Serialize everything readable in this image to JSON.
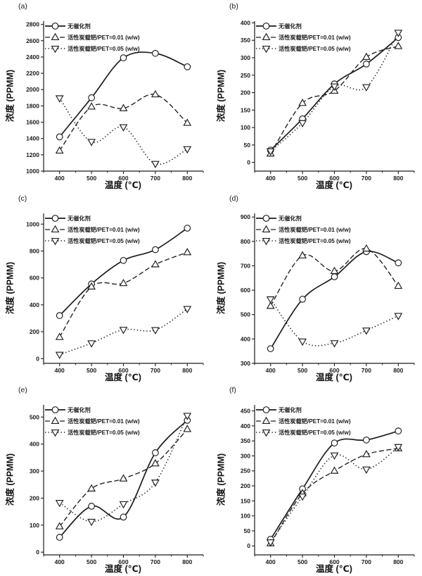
{
  "figure": {
    "background": "#ffffff",
    "line_color": "#1c1c1c",
    "text_color": "#1a1a1a"
  },
  "chart_data": [
    {
      "panel_label": "(a)",
      "type": "line",
      "xlabel": "温度 (℃)",
      "ylabel": "浓度 (PPMM)",
      "x": [
        400,
        500,
        600,
        700,
        800
      ],
      "xlim": [
        350,
        850
      ],
      "xticks": [
        400,
        500,
        600,
        700,
        800
      ],
      "xticks_minor": [
        350,
        450,
        550,
        650,
        750,
        850
      ],
      "ylim": [
        1000,
        2840
      ],
      "yticks": [
        1000,
        1200,
        1400,
        1600,
        1800,
        2000,
        2200,
        2400,
        2600,
        2800
      ],
      "grid": false,
      "legend_position": "top-left",
      "series": [
        {
          "name": "无催化剂",
          "marker": "circle",
          "line_style": "solid",
          "values": [
            1420,
            1900,
            2390,
            2445,
            2280
          ]
        },
        {
          "name": "活性炭载钯/PET=0.01 (w/w)",
          "marker": "triangle-up",
          "line_style": "dashed",
          "values": [
            1250,
            1790,
            1770,
            1940,
            1590
          ]
        },
        {
          "name": "活性炭载钯/PET=0.05 (w/w)",
          "marker": "triangle-down",
          "line_style": "dotted",
          "values": [
            1895,
            1360,
            1540,
            1090,
            1270
          ]
        }
      ]
    },
    {
      "panel_label": "(b)",
      "type": "line",
      "xlabel": "温度 (℃)",
      "ylabel": "浓度 (PPMM)",
      "x": [
        400,
        500,
        600,
        700,
        800
      ],
      "xlim": [
        350,
        850
      ],
      "xticks": [
        400,
        500,
        600,
        700,
        800
      ],
      "xticks_minor": [
        350,
        450,
        550,
        650,
        750,
        850
      ],
      "ylim": [
        -25,
        405
      ],
      "yticks": [
        0,
        50,
        100,
        150,
        200,
        250,
        300,
        350,
        400
      ],
      "grid": false,
      "legend_position": "top-left",
      "series": [
        {
          "name": "无催化剂",
          "marker": "circle",
          "line_style": "solid",
          "values": [
            35,
            125,
            225,
            282,
            358
          ]
        },
        {
          "name": "活性炭载钯/PET=0.01 (w/w)",
          "marker": "triangle-up",
          "line_style": "dashed",
          "values": [
            25,
            170,
            205,
            302,
            333
          ]
        },
        {
          "name": "活性炭载钯/PET=0.05 (w/w)",
          "marker": "triangle-down",
          "line_style": "dotted",
          "values": [
            32,
            113,
            218,
            216,
            372
          ]
        }
      ]
    },
    {
      "panel_label": "(c)",
      "type": "line",
      "xlabel": "温度 (℃)",
      "ylabel": "浓度 (PPMM)",
      "x": [
        400,
        500,
        600,
        700,
        800
      ],
      "xlim": [
        350,
        850
      ],
      "xticks": [
        400,
        500,
        600,
        700,
        800
      ],
      "xticks_minor": [
        350,
        450,
        550,
        650,
        750,
        850
      ],
      "ylim": [
        -35,
        1080
      ],
      "yticks": [
        0,
        200,
        400,
        600,
        800,
        1000
      ],
      "grid": false,
      "legend_position": "top-left",
      "series": [
        {
          "name": "无催化剂",
          "marker": "circle",
          "line_style": "solid",
          "values": [
            320,
            555,
            730,
            810,
            970
          ]
        },
        {
          "name": "活性炭载钯/PET=0.01 (w/w)",
          "marker": "triangle-up",
          "line_style": "dashed",
          "values": [
            160,
            535,
            560,
            700,
            790
          ]
        },
        {
          "name": "活性炭载钯/PET=0.05 (w/w)",
          "marker": "triangle-down",
          "line_style": "dotted",
          "values": [
            30,
            115,
            215,
            213,
            370
          ]
        }
      ]
    },
    {
      "panel_label": "(d)",
      "type": "line",
      "xlabel": "温度 (℃)",
      "ylabel": "浓度 (PPMM)",
      "x": [
        400,
        500,
        600,
        700,
        800
      ],
      "xlim": [
        350,
        850
      ],
      "xticks": [
        400,
        500,
        600,
        700,
        800
      ],
      "xticks_minor": [
        350,
        450,
        550,
        650,
        750,
        850
      ],
      "ylim": [
        300,
        915
      ],
      "yticks": [
        300,
        400,
        500,
        600,
        700,
        800,
        900
      ],
      "grid": false,
      "legend_position": "top-left",
      "series": [
        {
          "name": "无催化剂",
          "marker": "circle",
          "line_style": "solid",
          "values": [
            360,
            563,
            655,
            758,
            712
          ]
        },
        {
          "name": "活性炭载钯/PET=0.01 (w/w)",
          "marker": "triangle-up",
          "line_style": "dashed",
          "values": [
            535,
            742,
            678,
            770,
            617
          ]
        },
        {
          "name": "活性炭载钯/PET=0.05 (w/w)",
          "marker": "triangle-down",
          "line_style": "dotted",
          "values": [
            563,
            390,
            383,
            435,
            495
          ]
        }
      ]
    },
    {
      "panel_label": "(e)",
      "type": "line",
      "xlabel": "温度 (℃)",
      "ylabel": "浓度 (PPMM)",
      "x": [
        400,
        500,
        600,
        700,
        800
      ],
      "xlim": [
        350,
        850
      ],
      "xticks": [
        400,
        500,
        600,
        700,
        800
      ],
      "xticks_minor": [
        350,
        450,
        550,
        650,
        750,
        850
      ],
      "ylim": [
        -10,
        545
      ],
      "yticks": [
        0,
        100,
        200,
        300,
        400,
        500
      ],
      "grid": false,
      "legend_position": "top-left",
      "series": [
        {
          "name": "无催化剂",
          "marker": "circle",
          "line_style": "solid",
          "values": [
            55,
            170,
            130,
            368,
            488
          ]
        },
        {
          "name": "活性炭载钯/PET=0.01 (w/w)",
          "marker": "triangle-up",
          "line_style": "dashed",
          "values": [
            95,
            235,
            272,
            328,
            455
          ]
        },
        {
          "name": "活性炭载钯/PET=0.05 (w/w)",
          "marker": "triangle-down",
          "line_style": "dotted",
          "values": [
            183,
            113,
            178,
            258,
            505
          ]
        }
      ]
    },
    {
      "panel_label": "(f)",
      "type": "line",
      "xlabel": "温度 (℃)",
      "ylabel": "浓度 (PPMM)",
      "x": [
        400,
        500,
        600,
        700,
        800
      ],
      "xlim": [
        350,
        850
      ],
      "xticks": [
        400,
        500,
        600,
        700,
        800
      ],
      "xticks_minor": [
        350,
        450,
        550,
        650,
        750,
        850
      ],
      "ylim": [
        -30,
        470
      ],
      "yticks": [
        0,
        50,
        100,
        150,
        200,
        250,
        300,
        350,
        400,
        450
      ],
      "grid": false,
      "legend_position": "top-left",
      "series": [
        {
          "name": "无催化剂",
          "marker": "circle",
          "line_style": "solid",
          "values": [
            22,
            190,
            343,
            353,
            383
          ]
        },
        {
          "name": "活性炭载钯/PET=0.01 (w/w)",
          "marker": "triangle-up",
          "line_style": "dashed",
          "values": [
            8,
            175,
            250,
            305,
            325
          ]
        },
        {
          "name": "活性炭载钯/PET=0.05 (w/w)",
          "marker": "triangle-down",
          "line_style": "dotted",
          "values": [
            12,
            165,
            302,
            255,
            330
          ]
        }
      ]
    }
  ]
}
